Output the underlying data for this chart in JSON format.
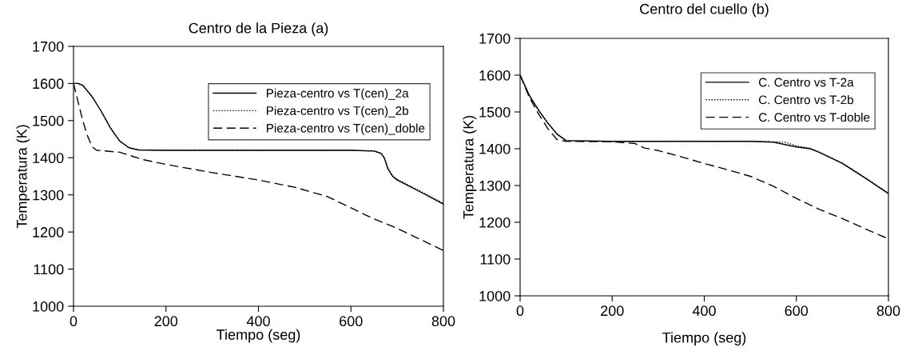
{
  "chart_data": [
    {
      "type": "line",
      "title": "Centro de la Pieza (a)",
      "xlabel": "Tiempo (seg)",
      "ylabel": "Temperatura (K)",
      "xlim": [
        0,
        800
      ],
      "xticks": [
        0,
        200,
        400,
        600,
        800
      ],
      "ylim": [
        1000,
        1700
      ],
      "yticks": [
        1000,
        1100,
        1200,
        1300,
        1400,
        1500,
        1600,
        1700
      ],
      "grid": false,
      "legend": "top right",
      "marker": "none",
      "series": [
        {
          "name": "Pieza-centro vs T(cen)_2a",
          "color": "#000000",
          "line_style": "solid",
          "x": [
            0,
            10,
            20,
            40,
            60,
            80,
            100,
            120,
            140,
            200,
            400,
            600,
            650,
            665,
            672,
            680,
            690,
            700,
            750,
            800
          ],
          "values": [
            1600,
            1600,
            1595,
            1565,
            1525,
            1480,
            1445,
            1427,
            1421,
            1420,
            1420,
            1420,
            1418,
            1412,
            1400,
            1370,
            1350,
            1340,
            1308,
            1275
          ]
        },
        {
          "name": "Pieza-centro vs T(cen)_2b",
          "color": "#000000",
          "line_style": "dotted",
          "x": [
            0,
            10,
            20,
            40,
            60,
            80,
            100,
            120,
            140,
            200,
            400,
            600,
            650,
            665,
            672,
            680,
            690,
            700,
            750,
            800
          ],
          "values": [
            1600,
            1600,
            1595,
            1565,
            1525,
            1480,
            1445,
            1427,
            1421,
            1420,
            1420,
            1420,
            1418,
            1412,
            1400,
            1372,
            1352,
            1342,
            1310,
            1277
          ]
        },
        {
          "name": "Pieza-centro vs T(cen)_doble",
          "color": "#000000",
          "line_style": "dashed",
          "x": [
            0,
            10,
            20,
            30,
            40,
            50,
            100,
            150,
            200,
            300,
            400,
            480,
            550,
            600,
            650,
            700,
            750,
            800
          ],
          "values": [
            1600,
            1550,
            1500,
            1460,
            1430,
            1420,
            1415,
            1395,
            1382,
            1360,
            1340,
            1320,
            1295,
            1265,
            1235,
            1210,
            1180,
            1150
          ]
        }
      ]
    },
    {
      "type": "line",
      "title": "Centro del cuello (b)",
      "xlabel": "Tiempo (seg)",
      "ylabel": "Temperatura (K)",
      "xlim": [
        0,
        800
      ],
      "xticks": [
        0,
        200,
        400,
        600,
        800
      ],
      "ylim": [
        1000,
        1700
      ],
      "yticks": [
        1000,
        1100,
        1200,
        1300,
        1400,
        1500,
        1600,
        1700
      ],
      "grid": false,
      "legend": "top right",
      "marker": "none",
      "series": [
        {
          "name": "C. Centro vs T-2a",
          "color": "#000000",
          "line_style": "solid",
          "x": [
            0,
            20,
            40,
            60,
            80,
            100,
            200,
            500,
            550,
            600,
            630,
            650,
            700,
            750,
            800
          ],
          "values": [
            1600,
            1545,
            1505,
            1470,
            1440,
            1422,
            1420,
            1420,
            1418,
            1405,
            1400,
            1390,
            1360,
            1320,
            1278
          ]
        },
        {
          "name": "C. Centro vs T-2b",
          "color": "#000000",
          "line_style": "dotted",
          "x": [
            0,
            20,
            40,
            60,
            80,
            100,
            200,
            500,
            575,
            600,
            630,
            650,
            700,
            750,
            800
          ],
          "values": [
            1600,
            1545,
            1505,
            1470,
            1440,
            1422,
            1420,
            1420,
            1418,
            1408,
            1401,
            1391,
            1361,
            1321,
            1279
          ]
        },
        {
          "name": "C. Centro vs T-doble",
          "color": "#000000",
          "line_style": "dashed",
          "x": [
            0,
            20,
            40,
            60,
            80,
            100,
            200,
            250,
            270,
            300,
            350,
            400,
            450,
            500,
            550,
            600,
            650,
            700,
            750,
            800
          ],
          "values": [
            1600,
            1540,
            1495,
            1455,
            1425,
            1420,
            1419,
            1414,
            1402,
            1395,
            1378,
            1360,
            1343,
            1325,
            1298,
            1265,
            1235,
            1210,
            1182,
            1155
          ]
        }
      ]
    }
  ]
}
